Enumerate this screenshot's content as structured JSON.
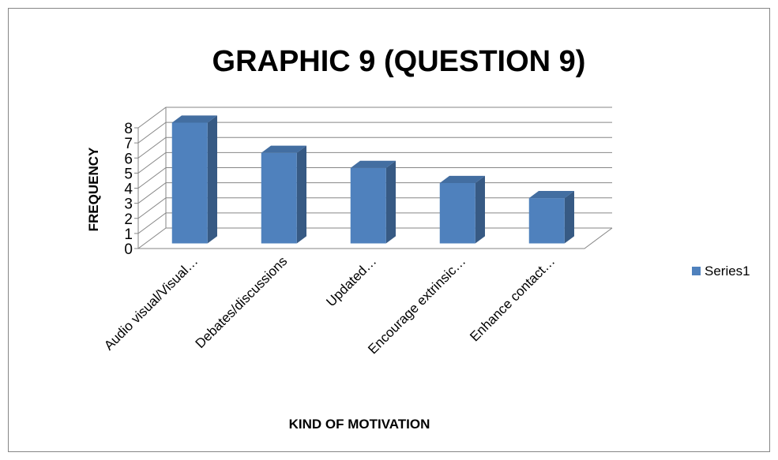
{
  "chart_data": {
    "type": "bar3d",
    "title": "GRAPHIC 9 (QUESTION 9)",
    "x_label": "KIND OF MOTIVATION",
    "y_label": "FREQUENCY",
    "categories": [
      "Audio visual/Visual…",
      "Debates/discussions",
      "Updated…",
      "Encourage extrinsic…",
      "Enhance contact…"
    ],
    "series": [
      {
        "name": "Series1",
        "color": "#4f81bd",
        "values": [
          8,
          6,
          5,
          4,
          3
        ]
      }
    ],
    "ylim": [
      0,
      8
    ],
    "yticks": [
      0,
      1,
      2,
      3,
      4,
      5,
      6,
      7,
      8
    ],
    "grid": true,
    "legend": "right"
  }
}
